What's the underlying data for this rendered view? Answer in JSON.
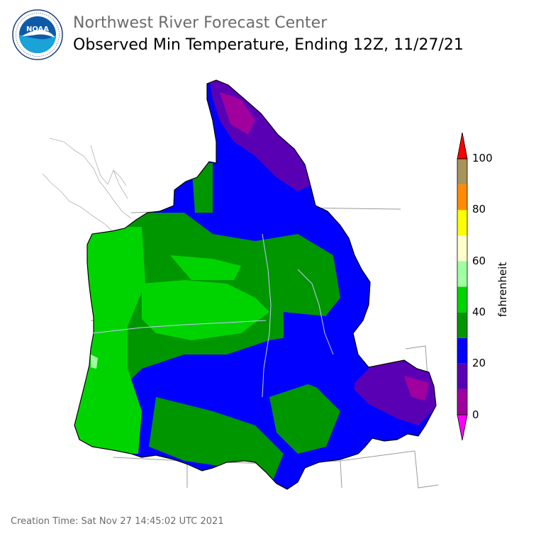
{
  "header": {
    "agency": "Northwest River Forecast Center",
    "product": "Observed Min Temperature, Ending 12Z, 11/27/21"
  },
  "logo": {
    "center_text": "NOAA",
    "ring_text": "NATIONAL OCEANIC AND ATMOSPHERIC ADMINISTRATION · U.S. DEPARTMENT OF COMMERCE",
    "icon": "noaa-seal-icon"
  },
  "colorbar": {
    "unit": "fahrenheit",
    "tick_labels": [
      "0",
      "20",
      "40",
      "60",
      "80",
      "100"
    ],
    "bins": [
      {
        "range": "0-10",
        "color": "#a0009e"
      },
      {
        "range": "10-20",
        "color": "#5a00b4"
      },
      {
        "range": "20-30",
        "color": "#0000ff"
      },
      {
        "range": "30-40",
        "color": "#009600"
      },
      {
        "range": "40-50",
        "color": "#00d400"
      },
      {
        "range": "50-60",
        "color": "#a0ffa0"
      },
      {
        "range": "60-70",
        "color": "#ffffcc"
      },
      {
        "range": "70-80",
        "color": "#ffff00"
      },
      {
        "range": "80-90",
        "color": "#ff8c00"
      },
      {
        "range": "90-100",
        "color": "#a8935a"
      }
    ],
    "under_color": "#ff00ff",
    "over_color": "#ff0000"
  },
  "map": {
    "region": "Pacific Northwest / Columbia River Basin",
    "background": "#ffffff",
    "boundary_color": "#9a9a9a"
  },
  "footer": {
    "creation_time": "Creation Time: Sat Nov 27 14:45:02 UTC 2021"
  }
}
